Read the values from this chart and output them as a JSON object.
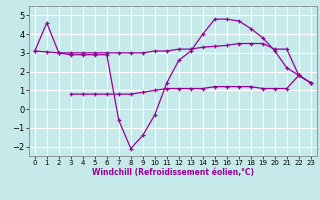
{
  "xlabel": "Windchill (Refroidissement éolien,°C)",
  "x_ticks": [
    0,
    1,
    2,
    3,
    4,
    5,
    6,
    7,
    8,
    9,
    10,
    11,
    12,
    13,
    14,
    15,
    16,
    17,
    18,
    19,
    20,
    21,
    22,
    23
  ],
  "ylim": [
    -2.5,
    5.5
  ],
  "xlim": [
    -0.5,
    23.5
  ],
  "bg_color": "#c6eaea",
  "grid_color": "#ffffff",
  "line_color": "#990099",
  "line1_x": [
    0,
    1,
    2,
    3,
    4,
    5,
    6,
    7,
    8,
    9,
    10,
    11,
    12,
    13,
    14,
    15,
    16,
    17,
    18,
    19,
    20,
    21,
    22,
    23
  ],
  "line1_y": [
    3.1,
    4.6,
    3.0,
    2.9,
    2.9,
    2.9,
    2.9,
    -0.6,
    -2.1,
    -1.4,
    -0.3,
    1.4,
    2.6,
    3.1,
    4.0,
    4.8,
    4.8,
    4.7,
    4.3,
    3.8,
    3.1,
    2.2,
    1.8,
    1.4
  ],
  "line2_x": [
    0,
    1,
    2,
    3,
    4,
    5,
    6,
    7,
    8,
    9,
    10,
    11,
    12,
    13,
    14,
    15,
    16,
    17,
    18,
    19,
    20,
    21,
    22,
    23
  ],
  "line2_y": [
    3.1,
    3.05,
    3.0,
    3.0,
    3.0,
    3.0,
    3.0,
    3.0,
    3.0,
    3.0,
    3.1,
    3.1,
    3.2,
    3.2,
    3.3,
    3.35,
    3.4,
    3.5,
    3.5,
    3.5,
    3.2,
    3.2,
    1.8,
    1.4
  ],
  "line3_x": [
    3,
    4,
    5,
    6,
    7,
    8,
    9,
    10,
    11,
    12,
    13,
    14,
    15,
    16,
    17,
    18,
    19,
    20,
    21,
    22,
    23
  ],
  "line3_y": [
    0.8,
    0.8,
    0.8,
    0.8,
    0.8,
    0.8,
    0.9,
    1.0,
    1.1,
    1.1,
    1.1,
    1.1,
    1.2,
    1.2,
    1.2,
    1.2,
    1.1,
    1.1,
    1.1,
    1.8,
    1.4
  ],
  "yticks": [
    -2,
    -1,
    0,
    1,
    2,
    3,
    4,
    5
  ]
}
